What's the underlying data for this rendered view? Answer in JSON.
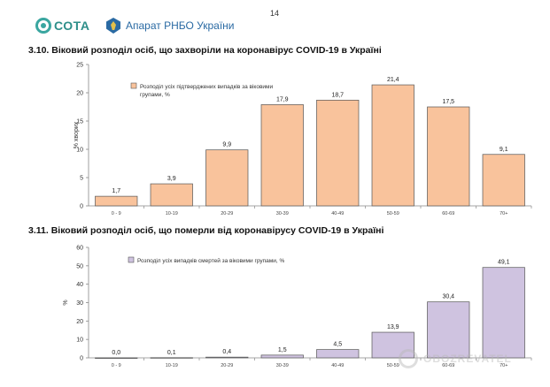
{
  "header": {
    "page_number": "14",
    "logo_text": "СОТА",
    "org_name": "Апарат РНБО України"
  },
  "watermark": "OBOZREVATEL",
  "chart_data": [
    {
      "type": "bar",
      "section_title": "3.10.  Віковий розподіл осіб, що захворіли на коронавірус COVID-19 в Україні",
      "categories": [
        "0 - 9",
        "10-19",
        "20-29",
        "30-39",
        "40-49",
        "50-59",
        "60-69",
        "70+"
      ],
      "values": [
        1.7,
        3.9,
        9.9,
        17.9,
        18.7,
        21.4,
        17.5,
        9.1
      ],
      "value_labels": [
        "1,7",
        "3,9",
        "9,9",
        "17,9",
        "18,7",
        "21,4",
        "17,5",
        "9,1"
      ],
      "ylabel": "% хворих",
      "ylim": [
        0,
        25
      ],
      "yticks": [
        0,
        5,
        10,
        15,
        20,
        25
      ],
      "legend": [
        "Розподіл усіх підтверджених випадків за віковими",
        "групами, %"
      ],
      "legend_position": "top-left",
      "color": "#f9c39c",
      "stroke": "#555555"
    },
    {
      "type": "bar",
      "section_title": "3.11.  Віковий розподіл осіб, що померли від коронавірусу COVID-19 в Україні",
      "categories": [
        "0 - 9",
        "10-19",
        "20-29",
        "30-39",
        "40-49",
        "50-59",
        "60-69",
        "70+"
      ],
      "values": [
        0.0,
        0.1,
        0.4,
        1.5,
        4.5,
        13.9,
        30.4,
        49.1
      ],
      "value_labels": [
        "0,0",
        "0,1",
        "0,4",
        "1,5",
        "4,5",
        "13,9",
        "30,4",
        "49,1"
      ],
      "ylabel": "%",
      "ylim": [
        0,
        60
      ],
      "yticks": [
        0,
        10,
        20,
        30,
        40,
        50,
        60
      ],
      "legend": [
        "Розподіл усіх випадків смертей за віковими групами, %"
      ],
      "legend_position": "top-left",
      "color": "#cfc3e0",
      "stroke": "#555555"
    }
  ]
}
